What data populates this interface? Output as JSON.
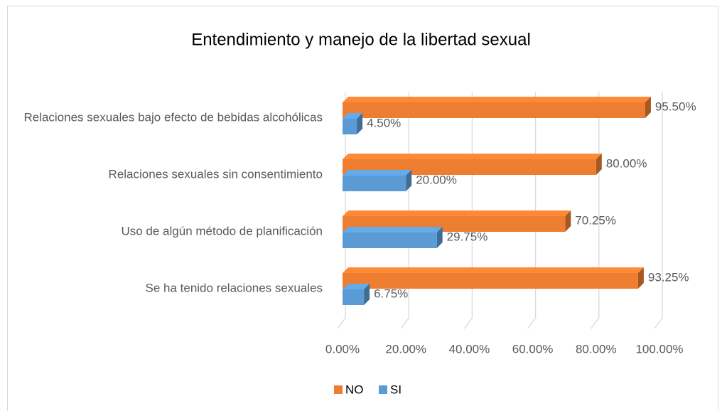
{
  "chart_data": {
    "type": "bar3d_horizontal",
    "title": "Entendimiento y manejo de la libertad sexual",
    "categories": [
      "Relaciones sexuales bajo efecto de bebidas alcohólicas",
      "Relaciones sexuales sin consentimiento",
      "Uso de algún método de planificación",
      "Se ha tenido relaciones sexuales"
    ],
    "series": [
      {
        "name": "NO",
        "color": "#ED7D31",
        "values": [
          95.5,
          80,
          70.25,
          93.25
        ],
        "value_labels": [
          "95.50%",
          "80.00%",
          "70.25%",
          "93.25%"
        ]
      },
      {
        "name": "SI",
        "color": "#5B9BD5",
        "values": [
          4.5,
          20,
          29.75,
          6.75
        ],
        "value_labels": [
          "4.50%",
          "20.00%",
          "29.75%",
          "6.75%"
        ]
      }
    ],
    "xlim": [
      0,
      100
    ],
    "xticks": [
      {
        "value": 0,
        "label": "0.00%"
      },
      {
        "value": 20,
        "label": "20.00%"
      },
      {
        "value": 40,
        "label": "40.00%"
      },
      {
        "value": 60,
        "label": "60.00%"
      },
      {
        "value": 80,
        "label": "80.00%"
      },
      {
        "value": 100,
        "label": "100.00%"
      }
    ],
    "grid": true,
    "legend": "bottom"
  }
}
